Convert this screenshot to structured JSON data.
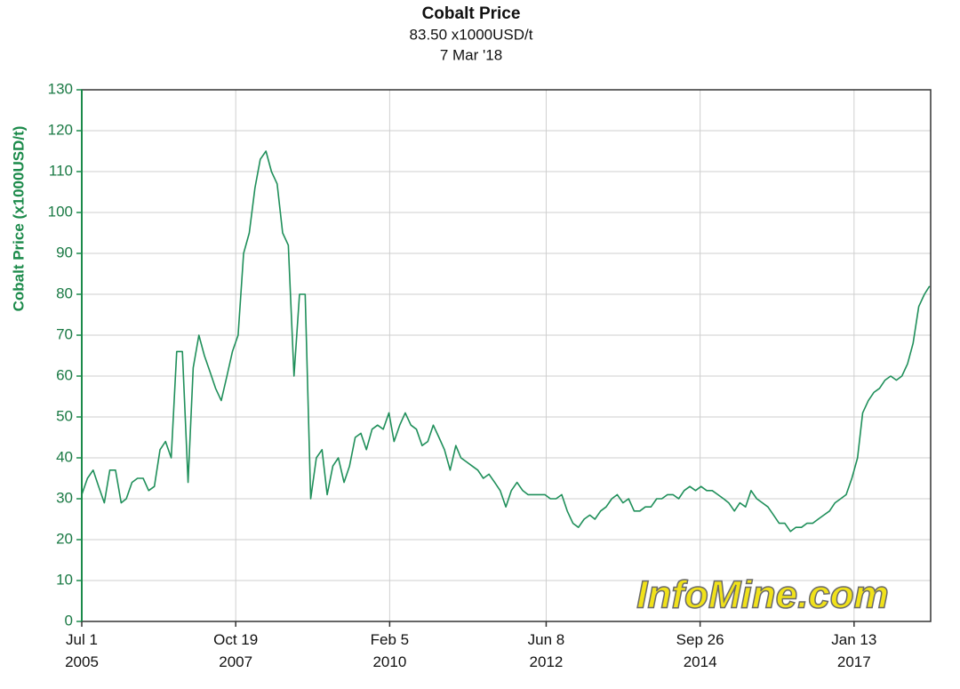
{
  "chart_data": {
    "type": "line",
    "title": "Cobalt Price",
    "subtitle": "83.50 x1000USD/t",
    "date": "7 Mar '18",
    "y_label": "Cobalt Price (x1000USD/t)",
    "watermark": "InfoMine.com",
    "color": "#1f8f5a",
    "grid": true,
    "xlim": [
      "2005-07-01",
      "2018-03-07"
    ],
    "xticks": [
      {
        "value": "2005-07-01",
        "label": "Jul 1\n2005"
      },
      {
        "value": "2007-10-19",
        "label": "Oct 19\n2007"
      },
      {
        "value": "2010-02-05",
        "label": "Feb 5\n2010"
      },
      {
        "value": "2012-06-08",
        "label": "Jun 8\n2012"
      },
      {
        "value": "2014-09-26",
        "label": "Sep 26\n2014"
      },
      {
        "value": "2017-01-13",
        "label": "Jan 13\n2017"
      }
    ],
    "ylim": [
      0,
      130
    ],
    "yticks": [
      0,
      10,
      20,
      30,
      40,
      50,
      60,
      70,
      80,
      90,
      100,
      110,
      120,
      130
    ],
    "x": [
      "2005-07",
      "2005-08",
      "2005-09",
      "2005-10",
      "2005-11",
      "2005-12",
      "2006-01",
      "2006-02",
      "2006-03",
      "2006-04",
      "2006-05",
      "2006-06",
      "2006-07",
      "2006-08",
      "2006-09",
      "2006-10",
      "2006-11",
      "2006-12",
      "2007-01",
      "2007-02",
      "2007-03",
      "2007-04",
      "2007-05",
      "2007-06",
      "2007-07",
      "2007-08",
      "2007-09",
      "2007-10",
      "2007-11",
      "2007-12",
      "2008-01",
      "2008-02",
      "2008-03",
      "2008-04",
      "2008-05",
      "2008-06",
      "2008-07",
      "2008-08",
      "2008-09",
      "2008-10",
      "2008-11",
      "2008-12",
      "2009-01",
      "2009-02",
      "2009-03",
      "2009-04",
      "2009-05",
      "2009-06",
      "2009-07",
      "2009-08",
      "2009-09",
      "2009-10",
      "2009-11",
      "2009-12",
      "2010-01",
      "2010-02",
      "2010-03",
      "2010-04",
      "2010-05",
      "2010-06",
      "2010-07",
      "2010-08",
      "2010-09",
      "2010-10",
      "2010-11",
      "2010-12",
      "2011-01",
      "2011-02",
      "2011-03",
      "2011-04",
      "2011-05",
      "2011-06",
      "2011-07",
      "2011-08",
      "2011-09",
      "2011-10",
      "2011-11",
      "2011-12",
      "2012-01",
      "2012-02",
      "2012-03",
      "2012-04",
      "2012-05",
      "2012-06",
      "2012-07",
      "2012-08",
      "2012-09",
      "2012-10",
      "2012-11",
      "2012-12",
      "2013-01",
      "2013-02",
      "2013-03",
      "2013-04",
      "2013-05",
      "2013-06",
      "2013-07",
      "2013-08",
      "2013-09",
      "2013-10",
      "2013-11",
      "2013-12",
      "2014-01",
      "2014-02",
      "2014-03",
      "2014-04",
      "2014-05",
      "2014-06",
      "2014-07",
      "2014-08",
      "2014-09",
      "2014-10",
      "2014-11",
      "2014-12",
      "2015-01",
      "2015-02",
      "2015-03",
      "2015-04",
      "2015-05",
      "2015-06",
      "2015-07",
      "2015-08",
      "2015-09",
      "2015-10",
      "2015-11",
      "2015-12",
      "2016-01",
      "2016-02",
      "2016-03",
      "2016-04",
      "2016-05",
      "2016-06",
      "2016-07",
      "2016-08",
      "2016-09",
      "2016-10",
      "2016-11",
      "2016-12",
      "2017-01",
      "2017-02",
      "2017-03",
      "2017-04",
      "2017-05",
      "2017-06",
      "2017-07",
      "2017-08",
      "2017-09",
      "2017-10",
      "2017-11",
      "2017-12",
      "2018-01",
      "2018-02",
      "2018-03"
    ],
    "values": [
      31,
      35,
      37,
      33,
      29,
      37,
      37,
      29,
      30,
      34,
      35,
      35,
      32,
      33,
      42,
      44,
      40,
      66,
      66,
      34,
      62,
      70,
      65,
      61,
      57,
      54,
      60,
      66,
      70,
      90,
      95,
      106,
      113,
      115,
      110,
      107,
      95,
      92,
      60,
      80,
      80,
      30,
      40,
      42,
      31,
      38,
      40,
      34,
      38,
      45,
      46,
      42,
      47,
      48,
      47,
      51,
      44,
      48,
      51,
      48,
      47,
      43,
      44,
      48,
      45,
      42,
      37,
      43,
      40,
      39,
      38,
      37,
      35,
      36,
      34,
      32,
      28,
      32,
      34,
      32,
      31,
      31,
      31,
      31,
      30,
      30,
      31,
      27,
      24,
      23,
      25,
      26,
      25,
      27,
      28,
      30,
      31,
      29,
      30,
      27,
      27,
      28,
      28,
      30,
      30,
      31,
      31,
      30,
      32,
      33,
      32,
      33,
      32,
      32,
      31,
      30,
      29,
      27,
      29,
      28,
      32,
      30,
      29,
      28,
      26,
      24,
      24,
      22,
      23,
      23,
      24,
      24,
      25,
      26,
      27,
      29,
      30,
      31,
      35,
      40,
      51,
      54,
      56,
      57,
      59,
      60,
      59,
      60,
      63,
      68,
      77,
      80,
      82
    ]
  }
}
